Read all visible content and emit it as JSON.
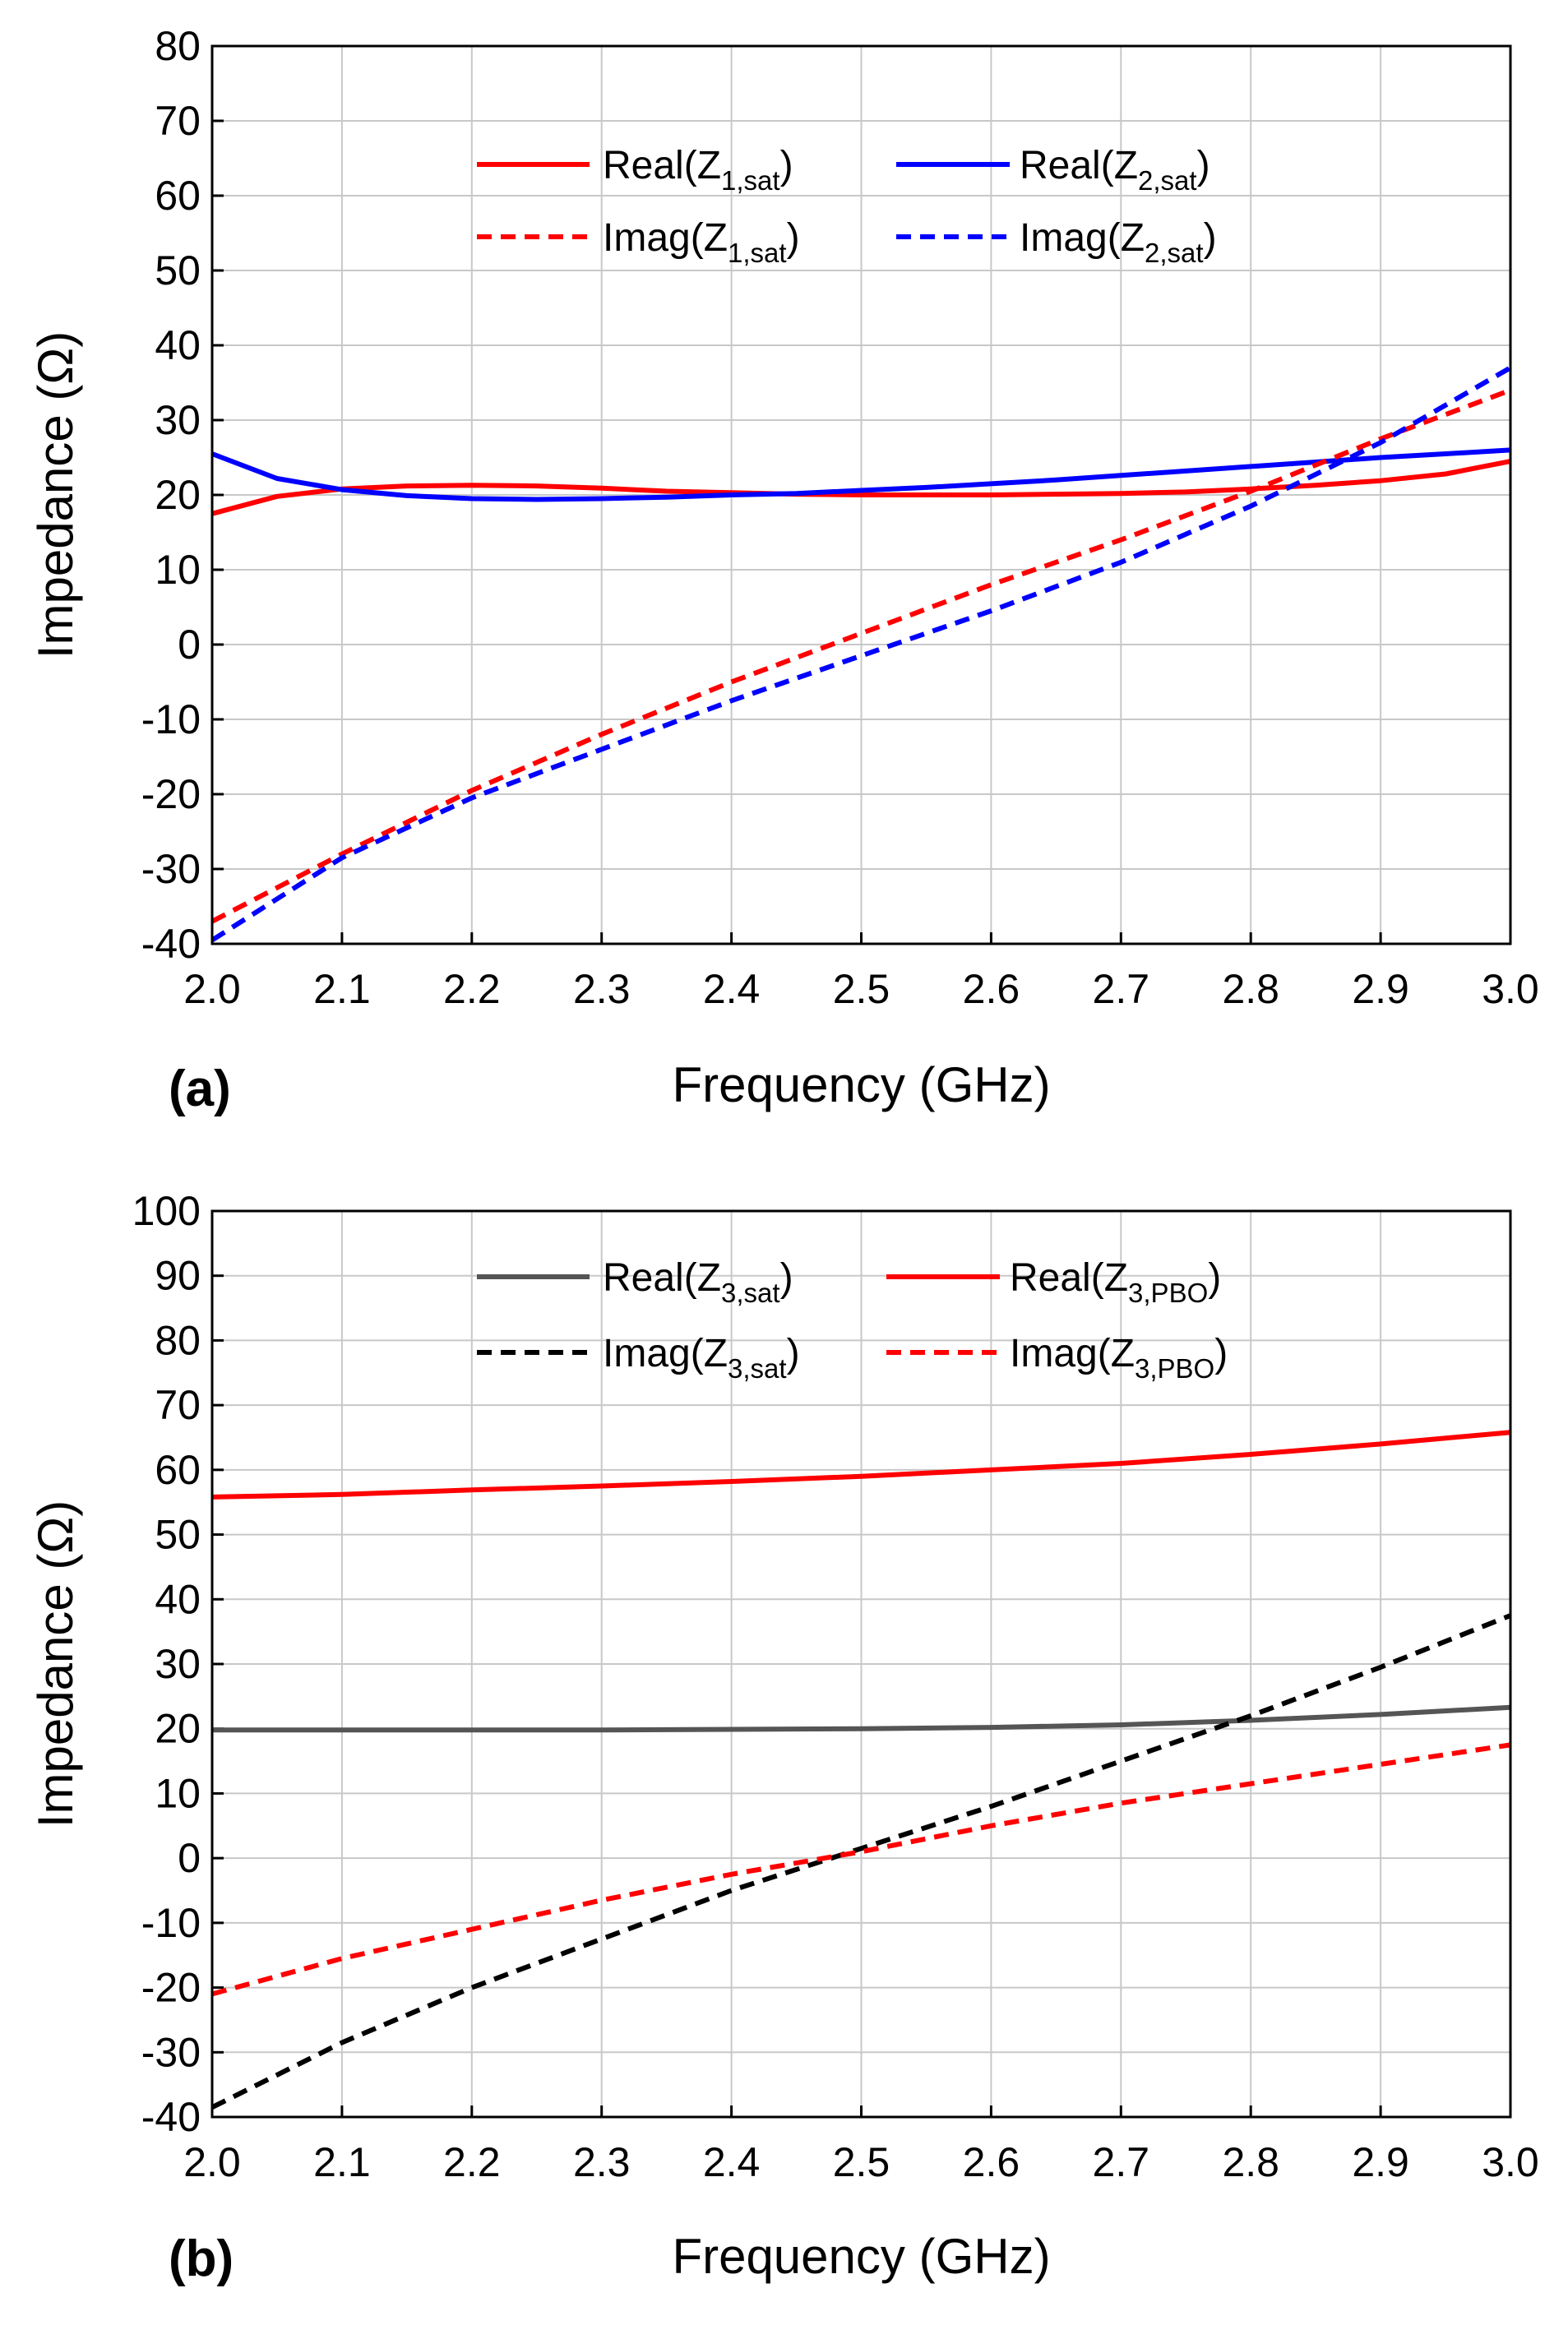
{
  "chart_data": [
    {
      "type": "line",
      "panel_label": "(a)",
      "xlabel": "Frequency (GHz)",
      "ylabel": "Impedance (Ω)",
      "xlim": [
        2.0,
        3.0
      ],
      "ylim": [
        -40,
        80
      ],
      "xticks": [
        "2.0",
        "2.1",
        "2.2",
        "2.3",
        "2.4",
        "2.5",
        "2.6",
        "2.7",
        "2.8",
        "2.9",
        "3.0"
      ],
      "yticks": [
        "-40",
        "-30",
        "-20",
        "-10",
        "0",
        "10",
        "20",
        "30",
        "40",
        "50",
        "60",
        "70",
        "80"
      ],
      "grid": true,
      "legend_position": "top",
      "series": [
        {
          "name": "Real(Z1,sat)",
          "prefix": "Real(Z",
          "sub": "1,sat",
          "color": "#ff0000",
          "dash": "solid",
          "x": [
            2.0,
            2.05,
            2.1,
            2.15,
            2.2,
            2.25,
            2.3,
            2.35,
            2.4,
            2.45,
            2.5,
            2.55,
            2.6,
            2.65,
            2.7,
            2.75,
            2.8,
            2.85,
            2.9,
            2.95,
            3.0
          ],
          "values": [
            17.5,
            19.8,
            20.8,
            21.2,
            21.3,
            21.2,
            20.9,
            20.5,
            20.3,
            20.1,
            20.0,
            20.0,
            20.0,
            20.1,
            20.2,
            20.4,
            20.8,
            21.3,
            21.9,
            22.8,
            24.5
          ]
        },
        {
          "name": "Real(Z2,sat)",
          "prefix": "Real(Z",
          "sub": "2,sat",
          "color": "#0000ff",
          "dash": "solid",
          "x": [
            2.0,
            2.05,
            2.1,
            2.15,
            2.2,
            2.25,
            2.3,
            2.35,
            2.4,
            2.45,
            2.5,
            2.55,
            2.6,
            2.65,
            2.7,
            2.75,
            2.8,
            2.85,
            2.9,
            2.95,
            3.0
          ],
          "values": [
            25.5,
            22.2,
            20.7,
            19.9,
            19.5,
            19.4,
            19.5,
            19.7,
            20.0,
            20.2,
            20.6,
            21.0,
            21.5,
            22.0,
            22.6,
            23.2,
            23.8,
            24.4,
            25.0,
            25.5,
            26.0
          ]
        },
        {
          "name": "Imag(Z1,sat)",
          "prefix": "Imag(Z",
          "sub": "1,sat",
          "color": "#ff0000",
          "dash": "dashed",
          "x": [
            2.0,
            2.1,
            2.2,
            2.3,
            2.4,
            2.5,
            2.6,
            2.7,
            2.8,
            2.9,
            3.0
          ],
          "values": [
            -37.0,
            -28.0,
            -19.5,
            -12.0,
            -5.0,
            1.5,
            8.0,
            14.0,
            20.5,
            27.5,
            34.0
          ]
        },
        {
          "name": "Imag(Z2,sat)",
          "prefix": "Imag(Z",
          "sub": "2,sat",
          "color": "#0000ff",
          "dash": "dashed",
          "x": [
            2.0,
            2.1,
            2.2,
            2.3,
            2.4,
            2.5,
            2.6,
            2.7,
            2.8,
            2.9,
            3.0
          ],
          "values": [
            -39.5,
            -28.5,
            -20.5,
            -14.0,
            -7.5,
            -1.5,
            4.5,
            11.0,
            18.5,
            27.0,
            37.0
          ]
        }
      ]
    },
    {
      "type": "line",
      "panel_label": "(b)",
      "xlabel": "Frequency (GHz)",
      "ylabel": "Impedance (Ω)",
      "xlim": [
        2.0,
        3.0
      ],
      "ylim": [
        -40,
        100
      ],
      "xticks": [
        "2.0",
        "2.1",
        "2.2",
        "2.3",
        "2.4",
        "2.5",
        "2.6",
        "2.7",
        "2.8",
        "2.9",
        "3.0"
      ],
      "yticks": [
        "-40",
        "-30",
        "-20",
        "-10",
        "0",
        "10",
        "20",
        "30",
        "40",
        "50",
        "60",
        "70",
        "80",
        "90",
        "100"
      ],
      "grid": true,
      "legend_position": "top",
      "series": [
        {
          "name": "Real(Z3,sat)",
          "prefix": "Real(Z",
          "sub": "3,sat",
          "color": "#555555",
          "dash": "solid",
          "x": [
            2.0,
            2.1,
            2.2,
            2.3,
            2.4,
            2.5,
            2.6,
            2.7,
            2.8,
            2.9,
            3.0
          ],
          "values": [
            19.8,
            19.8,
            19.8,
            19.8,
            19.9,
            20.0,
            20.2,
            20.6,
            21.3,
            22.2,
            23.3
          ]
        },
        {
          "name": "Real(Z3,PBO)",
          "prefix": "Real(Z",
          "sub": "3,PBO",
          "color": "#ff0000",
          "dash": "solid",
          "x": [
            2.0,
            2.1,
            2.2,
            2.3,
            2.4,
            2.5,
            2.6,
            2.7,
            2.8,
            2.9,
            3.0
          ],
          "values": [
            55.8,
            56.2,
            56.9,
            57.5,
            58.2,
            59.0,
            60.0,
            61.0,
            62.4,
            64.0,
            65.8
          ]
        },
        {
          "name": "Imag(Z3,sat)",
          "prefix": "Imag(Z",
          "sub": "3,sat",
          "color": "#000000",
          "dash": "dashed",
          "x": [
            2.0,
            2.1,
            2.2,
            2.3,
            2.4,
            2.5,
            2.6,
            2.7,
            2.8,
            2.9,
            3.0
          ],
          "values": [
            -38.5,
            -28.5,
            -20.0,
            -12.5,
            -5.0,
            1.5,
            8.0,
            15.0,
            22.0,
            29.5,
            37.5
          ]
        },
        {
          "name": "Imag(Z3,PBO)",
          "prefix": "Imag(Z",
          "sub": "3,PBO",
          "color": "#ff0000",
          "dash": "dashed",
          "x": [
            2.0,
            2.1,
            2.2,
            2.3,
            2.4,
            2.5,
            2.6,
            2.7,
            2.8,
            2.9,
            3.0
          ],
          "values": [
            -21.0,
            -15.5,
            -11.0,
            -6.5,
            -2.5,
            1.0,
            5.0,
            8.5,
            11.5,
            14.5,
            17.5
          ]
        }
      ]
    }
  ]
}
